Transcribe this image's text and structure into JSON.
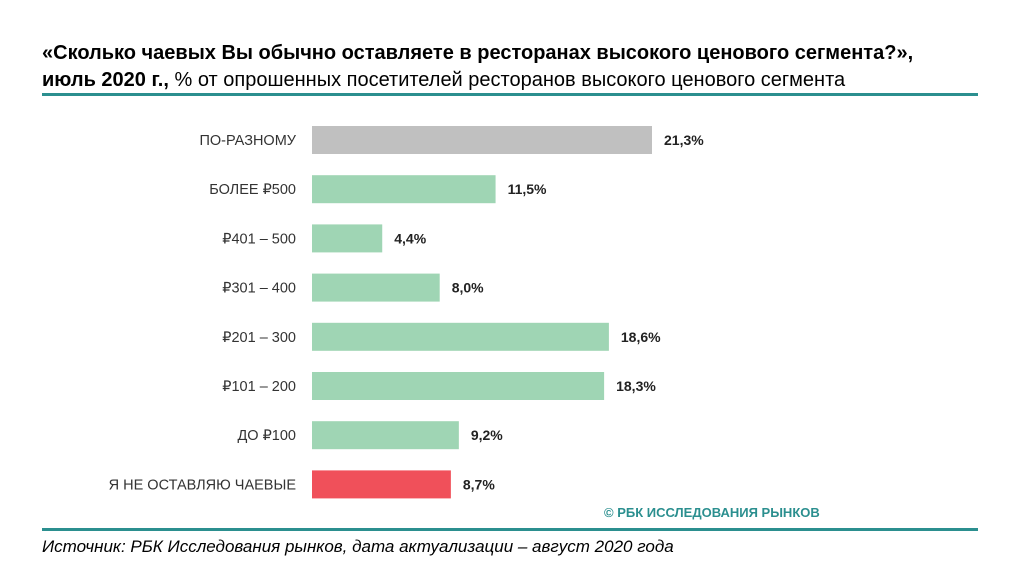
{
  "title": {
    "line1": "«Сколько чаевых Вы обычно оставляете в ресторанах высокого ценового сегмента?»,",
    "line2_bold": "июль 2020 г.,",
    "line2_rest": "% от опрошенных посетителей ресторанов высокого ценового сегмента"
  },
  "copyright": "© РБК ИССЛЕДОВАНИЯ РЫНКОВ",
  "source": "Источник: РБК Исследования рынков, дата актуализации – август 2020 года",
  "colors": {
    "gray": "#c0c0c0",
    "green": "#9fd5b4",
    "red": "#f0505a",
    "accent": "#2b8f8f"
  },
  "chart_data": {
    "type": "bar",
    "orientation": "horizontal",
    "categories": [
      "ПО-РАЗНОМУ",
      "БОЛЕЕ ₽500",
      "₽401 – 500",
      "₽301 – 400",
      "₽201 – 300",
      "₽101 – 200",
      "ДО ₽100",
      "Я НЕ ОСТАВЛЯЮ ЧАЕВЫЕ"
    ],
    "values": [
      21.3,
      11.5,
      4.4,
      8.0,
      18.6,
      18.3,
      9.2,
      8.7
    ],
    "value_labels": [
      "21,3%",
      "11,5%",
      "4,4%",
      "8,0%",
      "18,6%",
      "18,3%",
      "9,2%",
      "8,7%"
    ],
    "bar_colors": [
      "#c0c0c0",
      "#9fd5b4",
      "#9fd5b4",
      "#9fd5b4",
      "#9fd5b4",
      "#9fd5b4",
      "#9fd5b4",
      "#f0505a"
    ],
    "xlim": [
      0,
      21.3
    ],
    "grid": false,
    "legend": "none"
  }
}
